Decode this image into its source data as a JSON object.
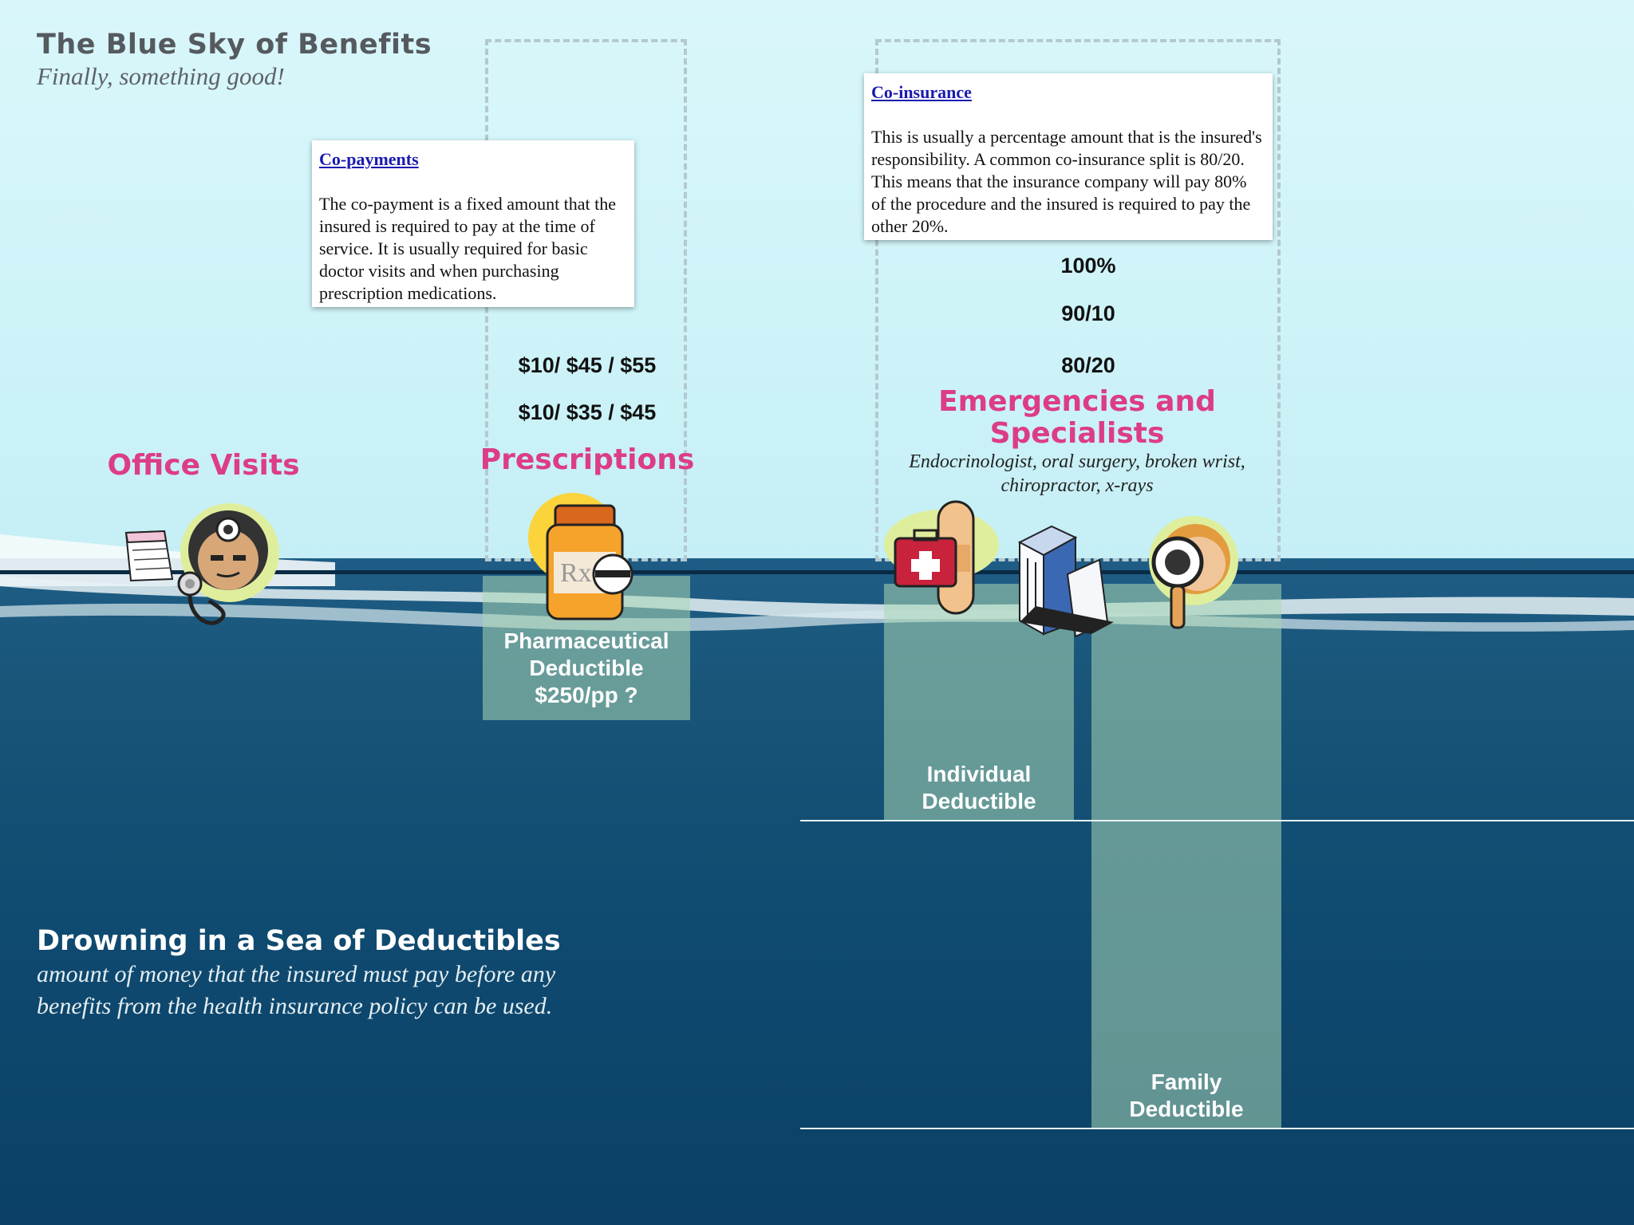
{
  "header": {
    "title": "The Blue Sky of Benefits",
    "subtitle": "Finally, something good!"
  },
  "copayments_note": {
    "heading": "Co-payments",
    "body": "The co-payment is a fixed amount that the insured is required to pay at the time of service. It is usually required for basic doctor visits and when purchasing prescription medications."
  },
  "coinsurance_note": {
    "heading": "Co-insurance",
    "body": "This is usually a percentage amount that is the insured's responsibility. A common co-insurance split is 80/20. This means that the insurance company will pay 80% of the procedure and the insured is required to pay the other 20%."
  },
  "prescriptions": {
    "label": "Prescriptions",
    "copay_1": "$10/ $45 / $55",
    "copay_2": "$10/ $35 / $45"
  },
  "office_visits": {
    "label": "Office Visits"
  },
  "emergencies": {
    "label_line1": "Emergencies and",
    "label_line2": "Specialists",
    "examples_line1": "Endocrinologist, oral surgery, broken wrist,",
    "examples_line2": "chiropractor, x-rays",
    "rate_1": "100%",
    "rate_2": "90/10",
    "rate_3": "80/20"
  },
  "deductibles": {
    "pharmaceutical_line1": "Pharmaceutical",
    "pharmaceutical_line2": "Deductible",
    "pharmaceutical_line3": "$250/pp ?",
    "individual_line1": "Individual",
    "individual_line2": "Deductible",
    "family_line1": "Family",
    "family_line2": "Deductible"
  },
  "sea": {
    "title": "Drowning in a Sea of Deductibles",
    "desc_line1": "amount of  money that the insured must pay before any",
    "desc_line2": "benefits from the health insurance policy can be used."
  },
  "icons": [
    "doctor-icon",
    "calendar-icon",
    "stethoscope-icon",
    "pill-bottle-icon",
    "first-aid-kit-icon",
    "bandage-icon",
    "hospital-building-icon",
    "magnifier-person-icon"
  ],
  "colors": {
    "accent_pink": "#dd3c86",
    "sky": "#cdf3f8",
    "sea": "#0f4a70",
    "deductible_fill": "#8fc7a6"
  }
}
